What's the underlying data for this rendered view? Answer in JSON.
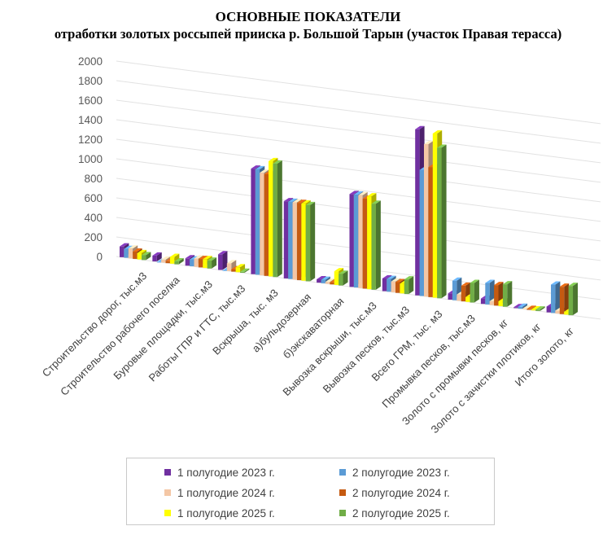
{
  "title_line1": "ОСНОВНЫЕ ПОКАЗАТЕЛИ",
  "title_line2": "отработки золотых россыпей прииска р. Большой Тарын (участок Правая терасса)",
  "chart_data": {
    "type": "bar",
    "style": "3d-clustered-column",
    "title": "ОСНОВНЫЕ ПОКАЗАТЕЛИ отработки золотых россыпей прииска р. Большой Тарын (участок Правая терасса)",
    "ylim": [
      0,
      2000
    ],
    "yticks": [
      0,
      200,
      400,
      600,
      800,
      1000,
      1200,
      1400,
      1600,
      1800,
      2000
    ],
    "grid": true,
    "legend_position": "bottom",
    "categories": [
      "Строительство дорог, тыс.м3",
      "Строительство  рабочего поселка",
      "Буровые площадки, тыс.м3",
      "Работы ГПР и ГТС, тыс.м3",
      "Вскрыша, тыс. м3",
      "а)бульдозерная",
      "б)экскаваторная",
      "Вывозка вскрыши, тыс.м3",
      "Вывозка песков, тыс.м3",
      "Всего ГРМ, тыс. м3",
      "Промывка песков, тыс.м3",
      "Золото с промывки песков, кг",
      "Золото с зачистки плотиков, кг",
      "Итого золото, кг"
    ],
    "series": [
      {
        "name": "1 полугодие 2023 г.",
        "color": "#7030a0",
        "values": [
          110,
          60,
          75,
          160,
          1080,
          790,
          35,
          950,
          130,
          1700,
          65,
          55,
          10,
          60
        ]
      },
      {
        "name": "2 полугодие 2023 г.",
        "color": "#5b9bd5",
        "values": [
          90,
          0,
          70,
          0,
          1080,
          790,
          35,
          950,
          130,
          1290,
          200,
          220,
          20,
          290
        ]
      },
      {
        "name": "1 полугодие 2024 г.",
        "color": "#f4c7a5",
        "values": [
          100,
          30,
          85,
          80,
          1050,
          790,
          20,
          950,
          110,
          1560,
          65,
          40,
          5,
          30
        ]
      },
      {
        "name": "2 полугодие 2024 г.",
        "color": "#c55a11",
        "values": [
          75,
          20,
          85,
          25,
          1040,
          790,
          20,
          920,
          110,
          1330,
          160,
          210,
          10,
          280
        ]
      },
      {
        "name": "1 полугодие 2025 г.",
        "color": "#ffff00",
        "values": [
          65,
          70,
          90,
          50,
          1180,
          790,
          140,
          950,
          100,
          1680,
          50,
          50,
          10,
          30
        ]
      },
      {
        "name": "2 полугодие 2025 г.",
        "color": "#70ad47",
        "values": [
          50,
          30,
          80,
          10,
          1160,
          780,
          120,
          880,
          150,
          1540,
          200,
          230,
          15,
          300
        ]
      }
    ]
  }
}
